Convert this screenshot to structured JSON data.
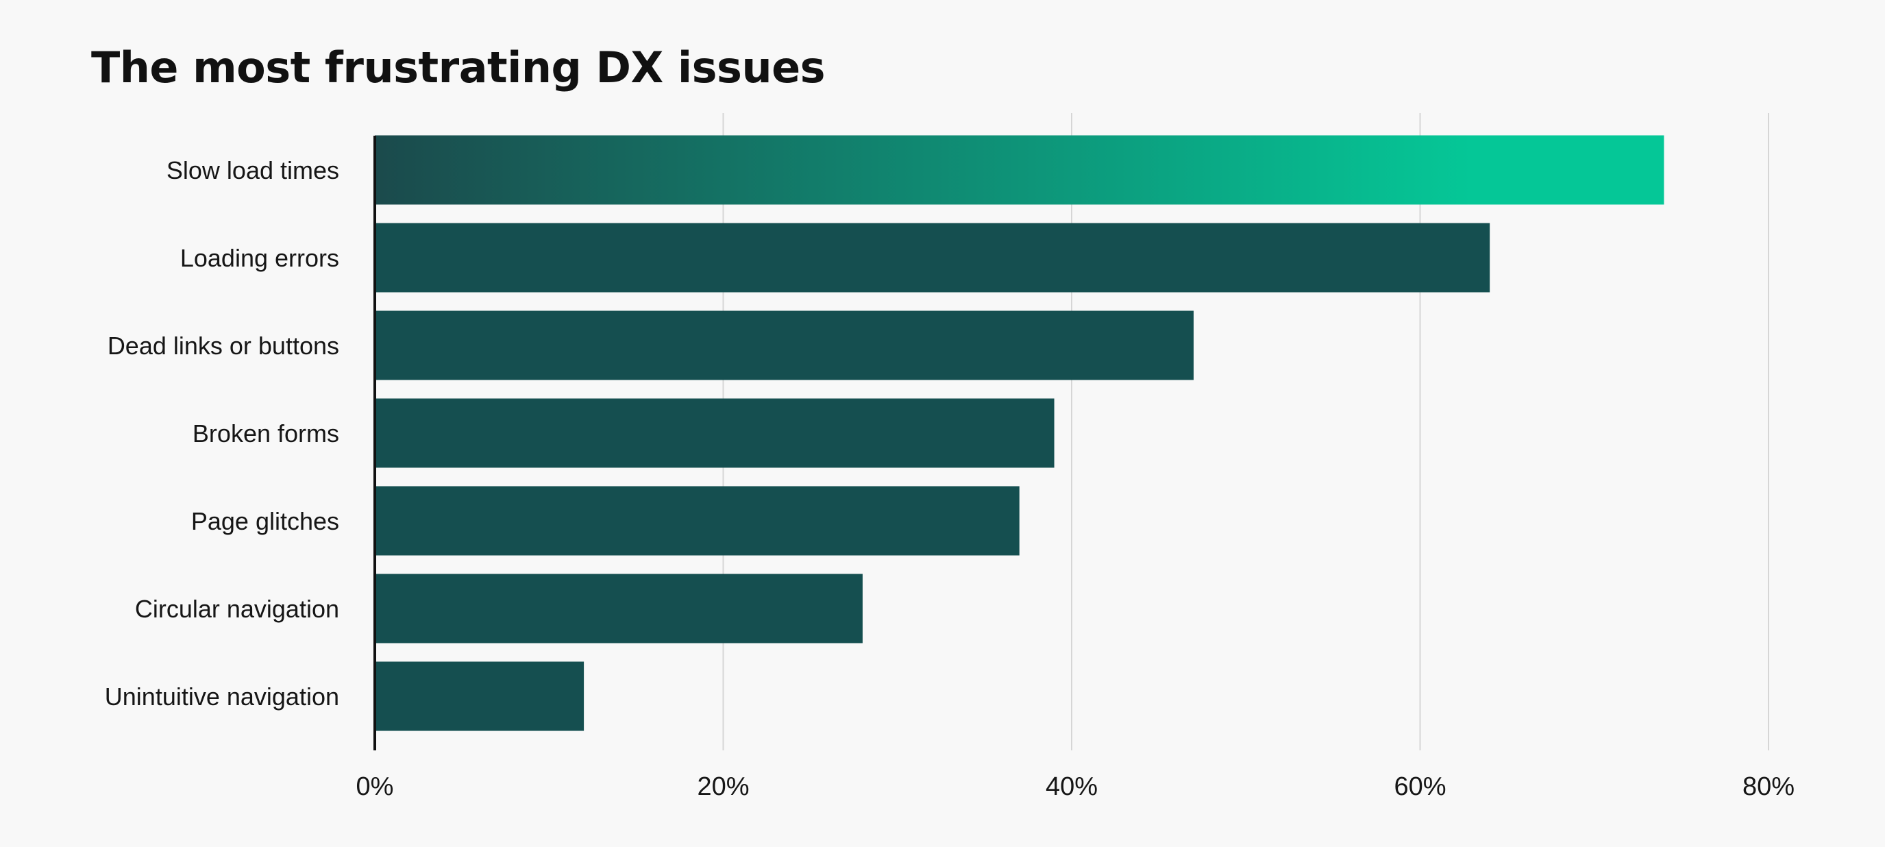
{
  "chart_data": {
    "type": "bar",
    "orientation": "horizontal",
    "title": "The most frustrating DX issues",
    "xlabel": "",
    "ylabel": "",
    "categories": [
      "Slow load times",
      "Loading errors",
      "Dead links or buttons",
      "Broken forms",
      "Page glitches",
      "Circular navigation",
      "Unintuitive navigation"
    ],
    "values": [
      74,
      64,
      47,
      39,
      37,
      28,
      12
    ],
    "xlim": [
      0,
      80
    ],
    "x_ticks": [
      "0%",
      "20%",
      "40%",
      "60%",
      "80%"
    ],
    "grid": "vertical",
    "highlight_index": 0,
    "colors": {
      "bar": "#154f50",
      "highlight_start": "#1b4a4c",
      "highlight_end": "#05c797",
      "gridline": "#d6d6d6",
      "axis": "#111111",
      "background": "#f8f8f8"
    }
  }
}
